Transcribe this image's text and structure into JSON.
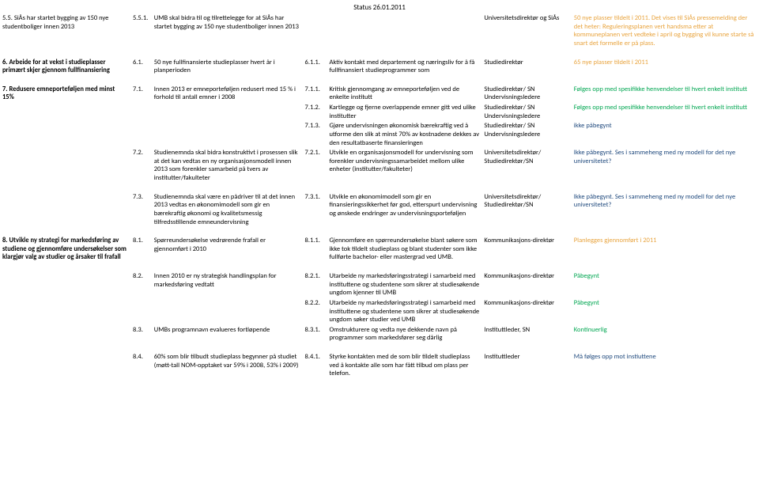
{
  "header": "Status 26.01.2011",
  "rows": [
    {
      "goal": "5.5.   SiÅs har startet bygging av 150 nye studentboliger innen 2013",
      "n1": "5.5.1.",
      "measure": "UMB skal bidra til og tilrettelegge for at SiÅs har startet bygging av 150 nye studentboliger innen 2013",
      "n2": "",
      "action": "",
      "resp": "Universitetsdirektør og SiÅs",
      "status": "50 nye plasser tildelt i 2011. Det vises til SiÅs pressemelding der det heter: Reguleringsplanen vert handsma etter at kommuneplanen vert vedteke i april og bygging vil kunne starte så snart det formelle er på plass.",
      "statusClass": "status-orange"
    },
    {
      "gap": true,
      "goal": "6. Arbeide for at vekst i studieplasser primært skjer gjennom fullfinansiering",
      "goalBold": true,
      "n1": "6.1.",
      "measure": "50 nye fullfinansierte studieplasser hvert år i planperioden",
      "n2": "6.1.1.",
      "action": "Aktiv kontakt med departement og næringsliv for å få fullfinansiert studieprogrammer som",
      "resp": "Studiedirektør",
      "status": "65 nye plasser tildelt i 2011",
      "statusClass": "status-orange"
    },
    {
      "gap": true,
      "goal": "7. Redusere emneporteføljen med minst 15%",
      "goalBold": true,
      "n1": "7.1.",
      "measure": "Innen 2013 er emneporteføljen redusert med 15 % i forhold til antall emner i 2008",
      "n2": "7.1.1.",
      "action": "Kritisk gjennomgang av emneporteføljen ved de enkelte institutt",
      "resp": "Studiedirektør/ SN Undervisningsledere",
      "status": "Følges opp med spesifikke henvendelser til hvert enkelt institutt",
      "statusClass": "status-green"
    },
    {
      "n2": "7.1.2.",
      "action": "Kartlegge og fjerne overlappende emner gitt ved ulike institutter",
      "resp": "Studiedirektør/ SN Undervisningsledere",
      "status": "Følges opp med spesifikke henvendelser til hvert enkelt institutt",
      "statusClass": "status-green"
    },
    {
      "n2": "7.1.3.",
      "action": "Gjøre undervisningen økonomisk bærekraftig ved å utforme den slik at minst 70% av kostnadene dekkes av den resultatbaserte finansieringen",
      "resp": "Studiedirektør/ SN Undervisningsledere",
      "status": "ikke påbegynt",
      "statusClass": "status-blue"
    },
    {
      "n1": "7.2.",
      "measure": "Studienemnda skal bidra konstruktivt i prosessen slik at det kan vedtas en ny organisasjonsmodell innen 2013 som forenkler samarbeid på tvers av institutter/fakulteter",
      "n2": "7.2.1.",
      "action": "Utvikle en organisasjonsmodell for undervisning som forenkler undervisningssamarbeidet mellom ulike enheter (institutter/fakulteter)",
      "resp": "Universitetsdirektør/ Studiedirektør/SN",
      "status": "Ikke påbegynt. Ses i sammeheng med ny modell for det nye universitetet?",
      "statusClass": "status-blue"
    },
    {
      "gap": true,
      "n1": "7.3.",
      "measure": "Studienemnda skal være en pådriver til at det innen 2013 vedtas en økonomimodell som gir en bærekraftig økonomi og kvalitetsmessig tilfredsstillende emneundervisning",
      "n2": "7.3.1.",
      "action": "Utvikle en økonomimodell som gir en finansieringssikkerhet før god, etterspurt undervisning og ønskede endringer av undervisningsporteføljen",
      "resp": "Universitetsdirektør/ Studiedirektør/SN",
      "status": "Ikke påbegynt. Ses i sammeheng med ny modell for det nye universitetet?",
      "statusClass": "status-blue"
    },
    {
      "gap": true,
      "goal": "8. Utvikle ny strategi for markedsføring av studiene og gjennomføre undersøkelser som klargjør valg av studier og årsaker til frafall",
      "goalBold": true,
      "n1": "8.1.",
      "measure": "Spørreundersøkelse vedrørende frafall er gjennomført i 2010",
      "n2": "8.1.1.",
      "action": "Gjennomføre en spørreundersøkelse blant søkere som ikke tok tildelt studieplass og blant studenter som ikke fullførte bachelor- eller mastergrad ved UMB.",
      "resp": "Kommunikasjons-direktør",
      "status": "Planlegges gjennomført i 2011",
      "statusClass": "status-orange"
    },
    {
      "gap": true,
      "n1": "8.2.",
      "measure": "Innen 2010 er ny strategisk handlingsplan for markedsføring vedtatt",
      "n2": "8.2.1.",
      "action": "Utarbeide ny markedsføringsstrategi i samarbeid med instituttene og studentene som sikrer at studiesøkende ungdom kjenner til UMB",
      "resp": "Kommunikasjons-direktør",
      "status": "Påbegynt",
      "statusClass": "status-green"
    },
    {
      "n2": "8.2.2.",
      "action": "Utarbeide ny markedsføringsstrategi i samarbeid med instituttene og studentene som sikrer at studiesøkende ungdom søker studier ved UMB",
      "resp": "Kommunikasjons-direktør",
      "status": "Påbegynt",
      "statusClass": "status-green"
    },
    {
      "n1": "8.3.",
      "measure": "UMBs programnavn evalueres fortløpende",
      "n2": "8.3.1.",
      "action": "Omstrukturere og vedta nye dekkende navn på programmer som markedsfører seg dårlig",
      "resp": "Instituttleder, SN",
      "status": "Kontinuerlig",
      "statusClass": "status-green"
    },
    {
      "gap": true,
      "n1": "8.4.",
      "measure": "60% som blir tilbudt studieplass begynner på studiet (møtt-tall NOM-opptaket var 59% i 2008, 53% i 2009)",
      "n2": "8.4.1.",
      "action": "Styrke kontakten med de som blir tildelt studieplass ved å kontakte alle som har fått tilbud om plass per telefon.",
      "resp": "Instituttleder",
      "status": "Må følges opp mot instiuttene",
      "statusClass": "status-blue"
    }
  ]
}
